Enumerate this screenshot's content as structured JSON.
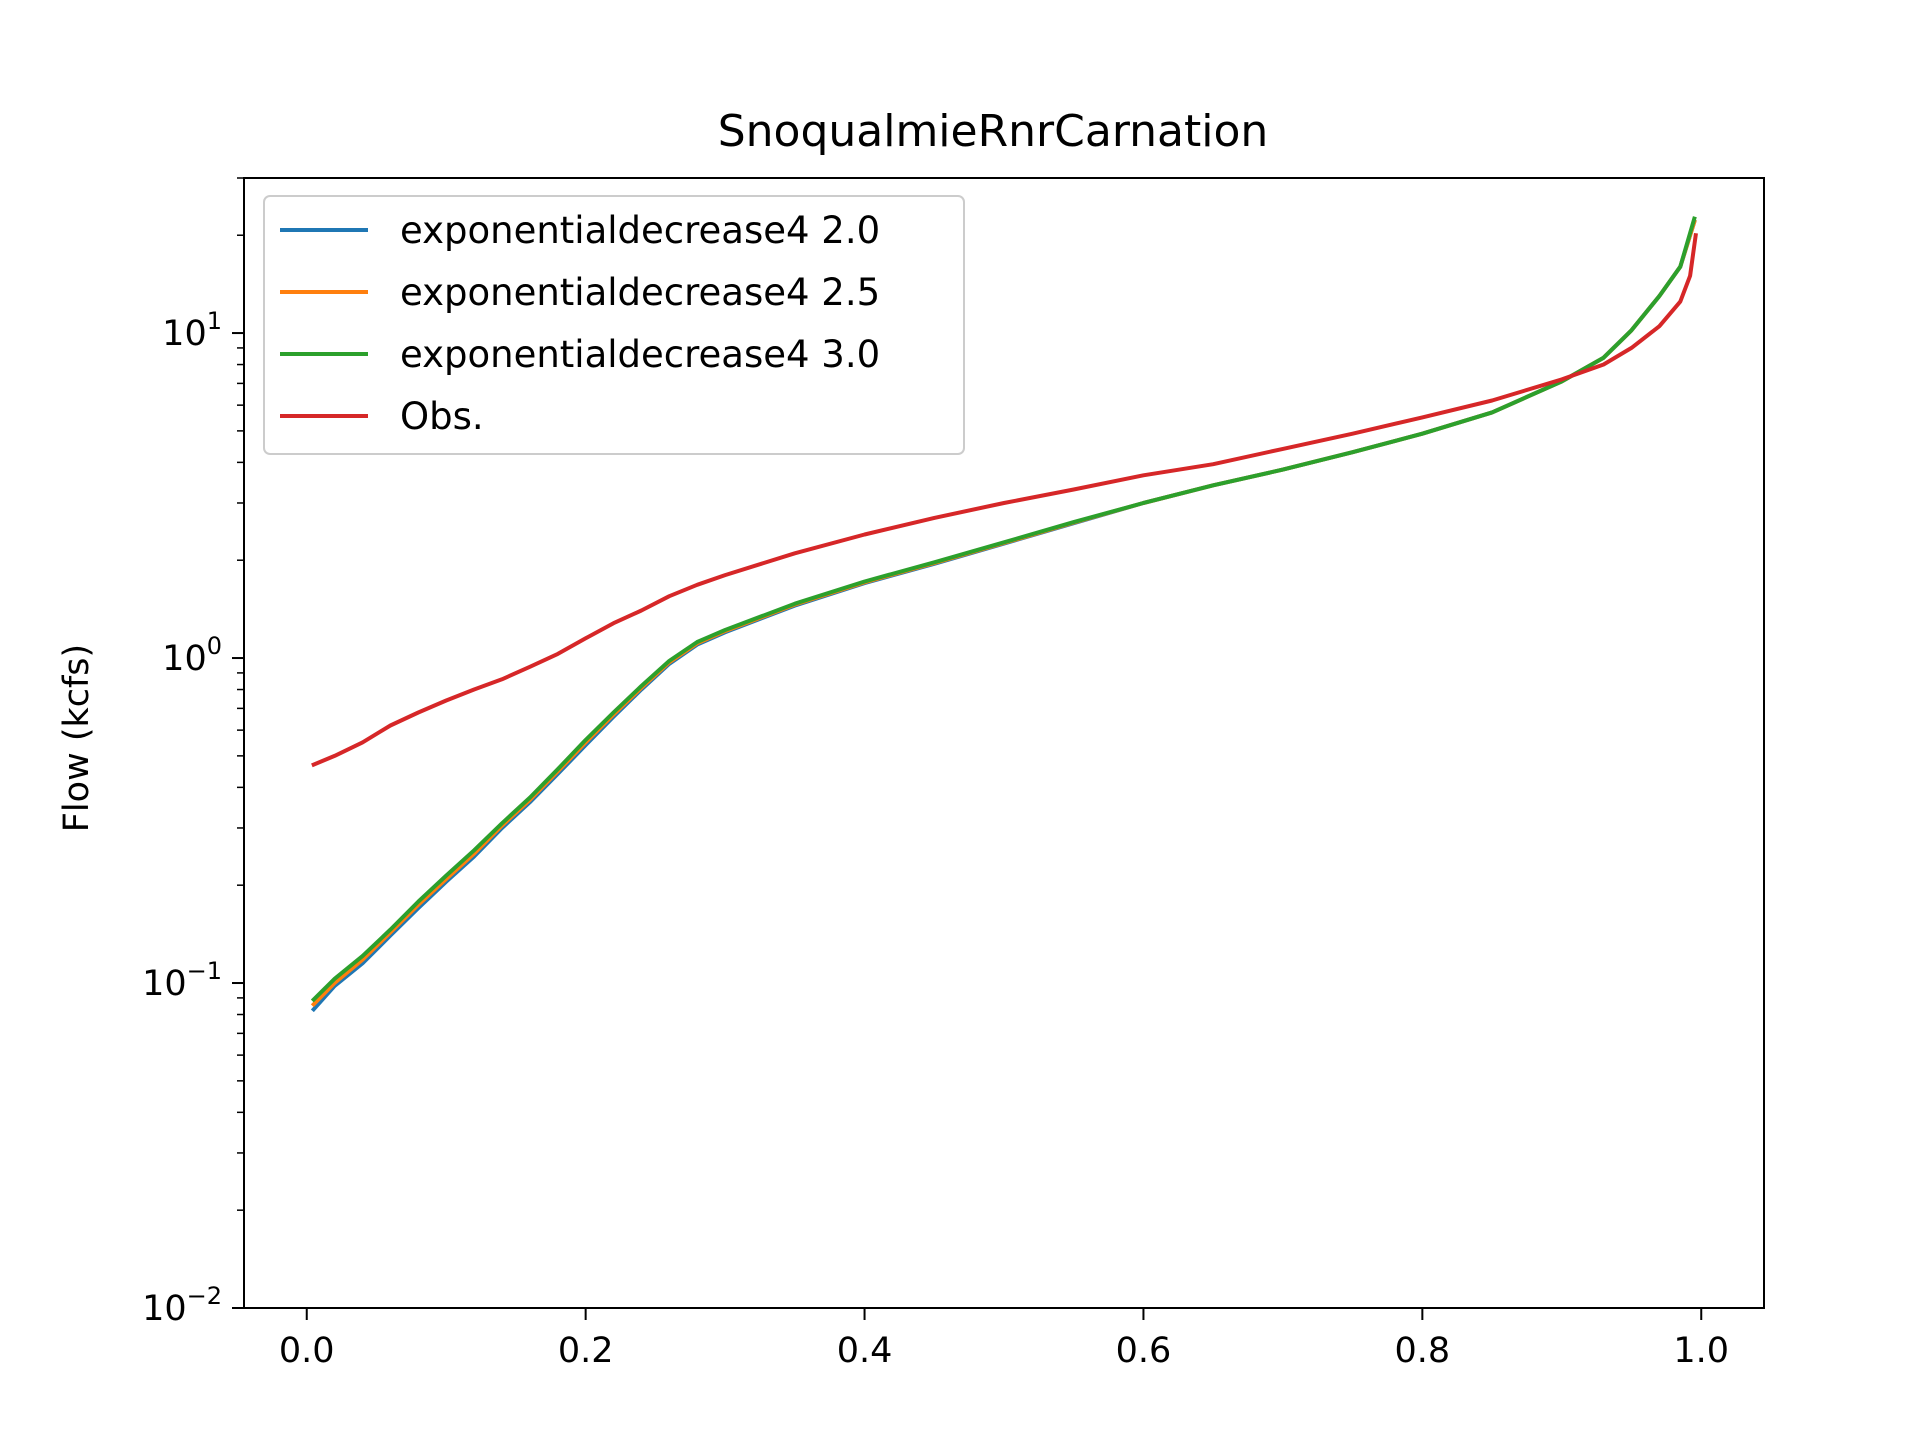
{
  "chart_data": {
    "type": "line",
    "title": "SnoqualmieRnrCarnation",
    "xlabel": "",
    "ylabel": "Flow (kcfs)",
    "xlim": [
      -0.045,
      1.045
    ],
    "ylim": [
      0.01,
      30
    ],
    "yscale": "log",
    "xticks": [
      {
        "value": 0.0,
        "label": "0.0"
      },
      {
        "value": 0.2,
        "label": "0.2"
      },
      {
        "value": 0.4,
        "label": "0.4"
      },
      {
        "value": 0.6,
        "label": "0.6"
      },
      {
        "value": 0.8,
        "label": "0.8"
      },
      {
        "value": 1.0,
        "label": "1.0"
      }
    ],
    "yticks": [
      {
        "value": 0.01,
        "base": "10",
        "exp": "−2"
      },
      {
        "value": 0.1,
        "base": "10",
        "exp": "−1"
      },
      {
        "value": 1,
        "base": "10",
        "exp": "0"
      },
      {
        "value": 10,
        "base": "10",
        "exp": "1"
      }
    ],
    "grid": false,
    "legend_position": "upper-left",
    "series": [
      {
        "name": "exponentialdecrease4 2.0",
        "color": "#1f77b4",
        "x": [
          0.005,
          0.02,
          0.04,
          0.06,
          0.08,
          0.1,
          0.12,
          0.14,
          0.16,
          0.18,
          0.2,
          0.22,
          0.24,
          0.26,
          0.28,
          0.3,
          0.35,
          0.4,
          0.45,
          0.5,
          0.55,
          0.6,
          0.65,
          0.7,
          0.75,
          0.8,
          0.85,
          0.9,
          0.93,
          0.95,
          0.97,
          0.985,
          0.995
        ],
        "y": [
          0.083,
          0.098,
          0.115,
          0.14,
          0.17,
          0.205,
          0.245,
          0.3,
          0.36,
          0.44,
          0.54,
          0.66,
          0.8,
          0.96,
          1.1,
          1.2,
          1.45,
          1.7,
          1.95,
          2.25,
          2.6,
          3.0,
          3.4,
          3.8,
          4.3,
          4.9,
          5.7,
          7.1,
          8.4,
          10.2,
          13.0,
          16.0,
          22.0
        ]
      },
      {
        "name": "exponentialdecrease4 2.5",
        "color": "#ff7f0e",
        "x": [
          0.005,
          0.02,
          0.04,
          0.06,
          0.08,
          0.1,
          0.12,
          0.14,
          0.16,
          0.18,
          0.2,
          0.22,
          0.24,
          0.26,
          0.28,
          0.3,
          0.35,
          0.4,
          0.45,
          0.5,
          0.55,
          0.6,
          0.65,
          0.7,
          0.75,
          0.8,
          0.85,
          0.9,
          0.93,
          0.95,
          0.97,
          0.985,
          0.995
        ],
        "y": [
          0.086,
          0.1,
          0.118,
          0.143,
          0.174,
          0.209,
          0.25,
          0.305,
          0.366,
          0.448,
          0.55,
          0.67,
          0.81,
          0.97,
          1.11,
          1.21,
          1.46,
          1.71,
          1.96,
          2.26,
          2.61,
          3.0,
          3.4,
          3.8,
          4.3,
          4.9,
          5.7,
          7.1,
          8.4,
          10.2,
          13.0,
          16.0,
          22.0
        ]
      },
      {
        "name": "exponentialdecrease4 3.0",
        "color": "#2ca02c",
        "x": [
          0.005,
          0.02,
          0.04,
          0.06,
          0.08,
          0.1,
          0.12,
          0.14,
          0.16,
          0.18,
          0.2,
          0.22,
          0.24,
          0.26,
          0.28,
          0.3,
          0.35,
          0.4,
          0.45,
          0.5,
          0.55,
          0.6,
          0.65,
          0.7,
          0.75,
          0.8,
          0.85,
          0.9,
          0.93,
          0.95,
          0.97,
          0.985,
          0.995
        ],
        "y": [
          0.089,
          0.103,
          0.121,
          0.146,
          0.178,
          0.214,
          0.256,
          0.31,
          0.372,
          0.455,
          0.56,
          0.68,
          0.82,
          0.98,
          1.12,
          1.22,
          1.47,
          1.72,
          1.97,
          2.27,
          2.62,
          3.0,
          3.4,
          3.8,
          4.3,
          4.9,
          5.7,
          7.1,
          8.4,
          10.2,
          13.0,
          16.0,
          22.5
        ]
      },
      {
        "name": "Obs.",
        "color": "#d62728",
        "x": [
          0.005,
          0.02,
          0.04,
          0.06,
          0.08,
          0.1,
          0.12,
          0.14,
          0.16,
          0.18,
          0.2,
          0.22,
          0.24,
          0.26,
          0.28,
          0.3,
          0.35,
          0.4,
          0.45,
          0.5,
          0.55,
          0.6,
          0.65,
          0.7,
          0.75,
          0.8,
          0.85,
          0.9,
          0.93,
          0.95,
          0.97,
          0.985,
          0.992,
          0.996
        ],
        "y": [
          0.47,
          0.5,
          0.55,
          0.62,
          0.68,
          0.74,
          0.8,
          0.86,
          0.94,
          1.03,
          1.15,
          1.28,
          1.4,
          1.55,
          1.68,
          1.8,
          2.1,
          2.4,
          2.7,
          3.0,
          3.3,
          3.65,
          3.95,
          4.4,
          4.9,
          5.5,
          6.2,
          7.2,
          8.0,
          9.0,
          10.5,
          12.5,
          15.0,
          20.0
        ]
      }
    ]
  }
}
